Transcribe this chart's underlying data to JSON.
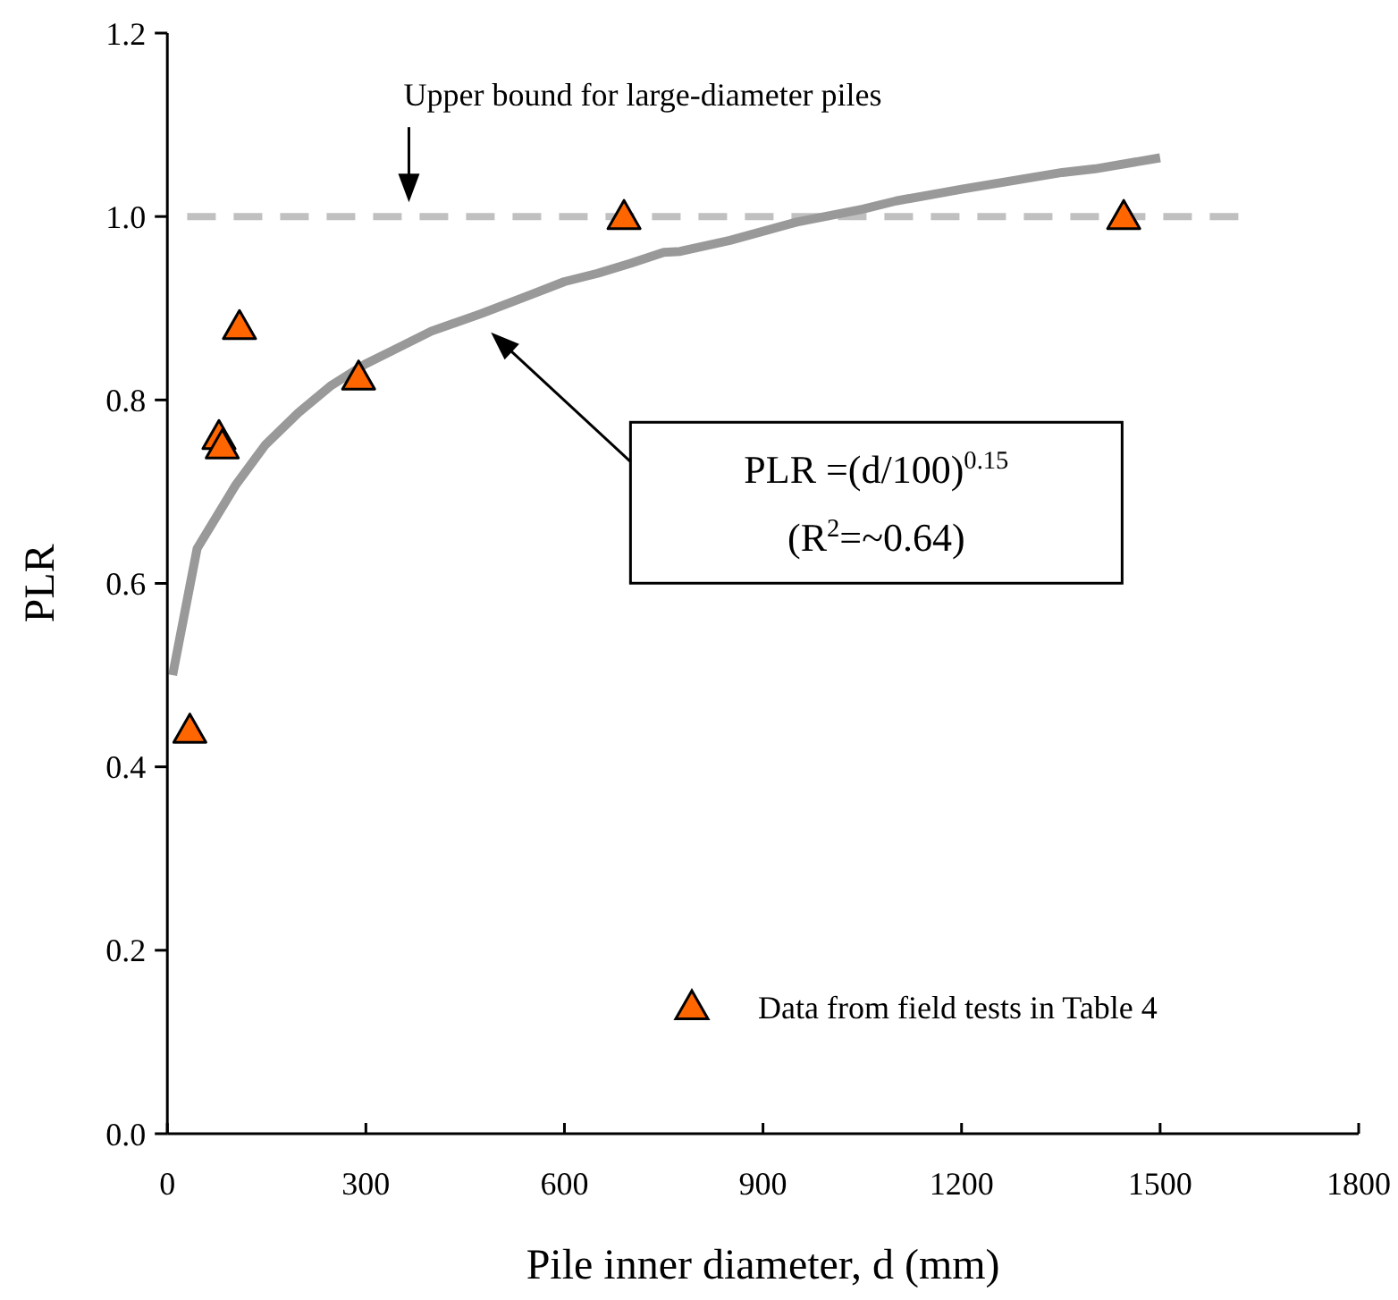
{
  "chart_data": {
    "type": "scatter",
    "xlabel": "Pile inner diameter, d (mm)",
    "ylabel": "PLR",
    "xlim": [
      0,
      1800
    ],
    "xticks": [
      0,
      300,
      600,
      900,
      1200,
      1500,
      1800
    ],
    "ylim": [
      0,
      1.2
    ],
    "yticks": [
      {
        "value": 0,
        "label": "0.0"
      },
      {
        "value": 0.2,
        "label": "0.2"
      },
      {
        "value": 0.4,
        "label": "0.4"
      },
      {
        "value": 0.6,
        "label": "0.6"
      },
      {
        "value": 0.8,
        "label": "0.8"
      },
      {
        "value": 1.0,
        "label": "1.0"
      },
      {
        "value": 1.2,
        "label": "1.2"
      }
    ],
    "grid": false,
    "legend": "bottom right",
    "series": [
      {
        "type": "line",
        "color": "#c0c0c0",
        "line_style": "dashed",
        "x": [
          30,
          1630
        ],
        "values": [
          1.0,
          1.0
        ]
      },
      {
        "type": "line",
        "color": "#999999",
        "line_style": "solid",
        "x": [
          8,
          45,
          104,
          148,
          198,
          248,
          299,
          349,
          399,
          474,
          550,
          600,
          650,
          700,
          750,
          775,
          850,
          951,
          1051,
          1101,
          1202,
          1352,
          1402,
          1500
        ],
        "values": [
          0.5,
          0.638,
          0.708,
          0.751,
          0.786,
          0.816,
          0.839,
          0.857,
          0.875,
          0.894,
          0.915,
          0.929,
          0.938,
          0.949,
          0.961,
          0.962,
          0.974,
          0.994,
          1.008,
          1.017,
          1.03,
          1.048,
          1.052,
          1.064
        ]
      },
      {
        "name": "Data from field tests in Table 4",
        "color": "#ff6600",
        "marker": "triangle",
        "x": [
          34,
          78,
          83,
          109,
          289,
          690,
          1445
        ],
        "values": [
          0.44,
          0.76,
          0.75,
          0.88,
          0.825,
          1.0,
          1.0
        ]
      }
    ],
    "annotations": [
      "Upper bound for large-diameter piles",
      "PLR =(d/100)$^{0.15}$",
      "(R$^{2}$=~0.64)"
    ]
  }
}
